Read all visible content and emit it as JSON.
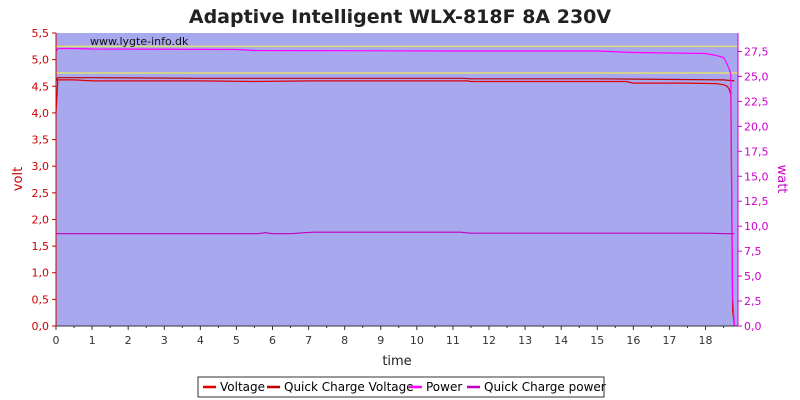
{
  "chart_data": {
    "type": "line",
    "title": "Adaptive Intelligent WLX-818F 8A 230V",
    "watermark": "www.lygte-info.dk",
    "xlabel": "time",
    "ylabel_left": "volt",
    "ylabel_right": "watt",
    "xlim": [
      0,
      18.9
    ],
    "ylim_left": [
      0,
      5.5
    ],
    "ylim_right": [
      0,
      29.35
    ],
    "x_ticks": [
      0,
      1,
      2,
      3,
      4,
      5,
      6,
      7,
      8,
      9,
      10,
      11,
      12,
      13,
      14,
      15,
      16,
      17,
      18
    ],
    "x_tick_labels": [
      "0",
      "1",
      "2",
      "3",
      "4",
      "5",
      "6",
      "7",
      "8",
      "9",
      "10",
      "11",
      "12",
      "13",
      "14",
      "15",
      "16",
      "17",
      "18"
    ],
    "y_left_ticks": [
      0,
      0.5,
      1,
      1.5,
      2,
      2.5,
      3,
      3.5,
      4,
      4.5,
      5,
      5.5
    ],
    "y_left_tick_labels": [
      "0,0",
      "0,5",
      "1,0",
      "1,5",
      "2,0",
      "2,5",
      "3,0",
      "3,5",
      "4,0",
      "4,5",
      "5,0",
      "5,5"
    ],
    "y_right_ticks": [
      0,
      2.5,
      5,
      7.5,
      10,
      12.5,
      15,
      17.5,
      20,
      22.5,
      25,
      27.5
    ],
    "y_right_tick_labels": [
      "0,0",
      "2,5",
      "5,0",
      "7,5",
      "10,0",
      "12,5",
      "15,0",
      "17,5",
      "20,0",
      "22,5",
      "25,0",
      "27,5"
    ],
    "reference_lines_volt": [
      5.25,
      4.75
    ],
    "grid": false,
    "legend_position": "bottom",
    "colors": {
      "background": "#a8a8ee",
      "voltage": "#e00000",
      "quick_charge_voltage": "#c00000",
      "power": "#ff00ff",
      "quick_charge_power": "#c000c0",
      "reference_lines": "#e0e070",
      "left_axis": "#cc0000",
      "right_axis": "#cc00cc"
    },
    "series": [
      {
        "name": "Voltage",
        "axis": "left",
        "x": [
          0,
          0.05,
          0.5,
          1.0,
          2.0,
          4.0,
          5.5,
          7.0,
          9.0,
          11.4,
          11.5,
          15.8,
          16.0,
          17.5,
          18.3,
          18.5,
          18.6,
          18.65,
          18.7,
          18.75,
          18.8
        ],
        "values": [
          4.0,
          4.62,
          4.62,
          4.6,
          4.6,
          4.6,
          4.59,
          4.6,
          4.6,
          4.6,
          4.59,
          4.59,
          4.56,
          4.56,
          4.55,
          4.53,
          4.5,
          4.45,
          4.35,
          0.3,
          0.0
        ]
      },
      {
        "name": "Quick Charge Voltage",
        "axis": "left",
        "x": [
          0,
          0.05,
          1.0,
          4.0,
          11.3,
          11.5,
          15.0,
          18.5,
          18.8
        ],
        "values": [
          4.6,
          4.66,
          4.66,
          4.65,
          4.65,
          4.64,
          4.64,
          4.62,
          4.6
        ]
      },
      {
        "name": "Power",
        "axis": "right",
        "x": [
          0,
          0.05,
          0.5,
          1.0,
          5.0,
          5.5,
          11.0,
          15.0,
          16.0,
          18.0,
          18.3,
          18.5,
          18.55,
          18.6,
          18.65,
          18.7,
          18.75,
          18.8
        ],
        "values": [
          27.5,
          27.8,
          27.8,
          27.75,
          27.7,
          27.6,
          27.55,
          27.55,
          27.4,
          27.3,
          27.1,
          26.9,
          26.6,
          26.2,
          25.8,
          25.2,
          3.0,
          0.0
        ]
      },
      {
        "name": "Quick Charge power",
        "axis": "right",
        "x": [
          0,
          1.0,
          5.6,
          5.8,
          6.0,
          6.5,
          7.1,
          11.2,
          11.5,
          18.0,
          18.6,
          18.8
        ],
        "values": [
          9.25,
          9.25,
          9.25,
          9.35,
          9.25,
          9.25,
          9.4,
          9.4,
          9.3,
          9.3,
          9.25,
          9.25
        ]
      }
    ]
  }
}
